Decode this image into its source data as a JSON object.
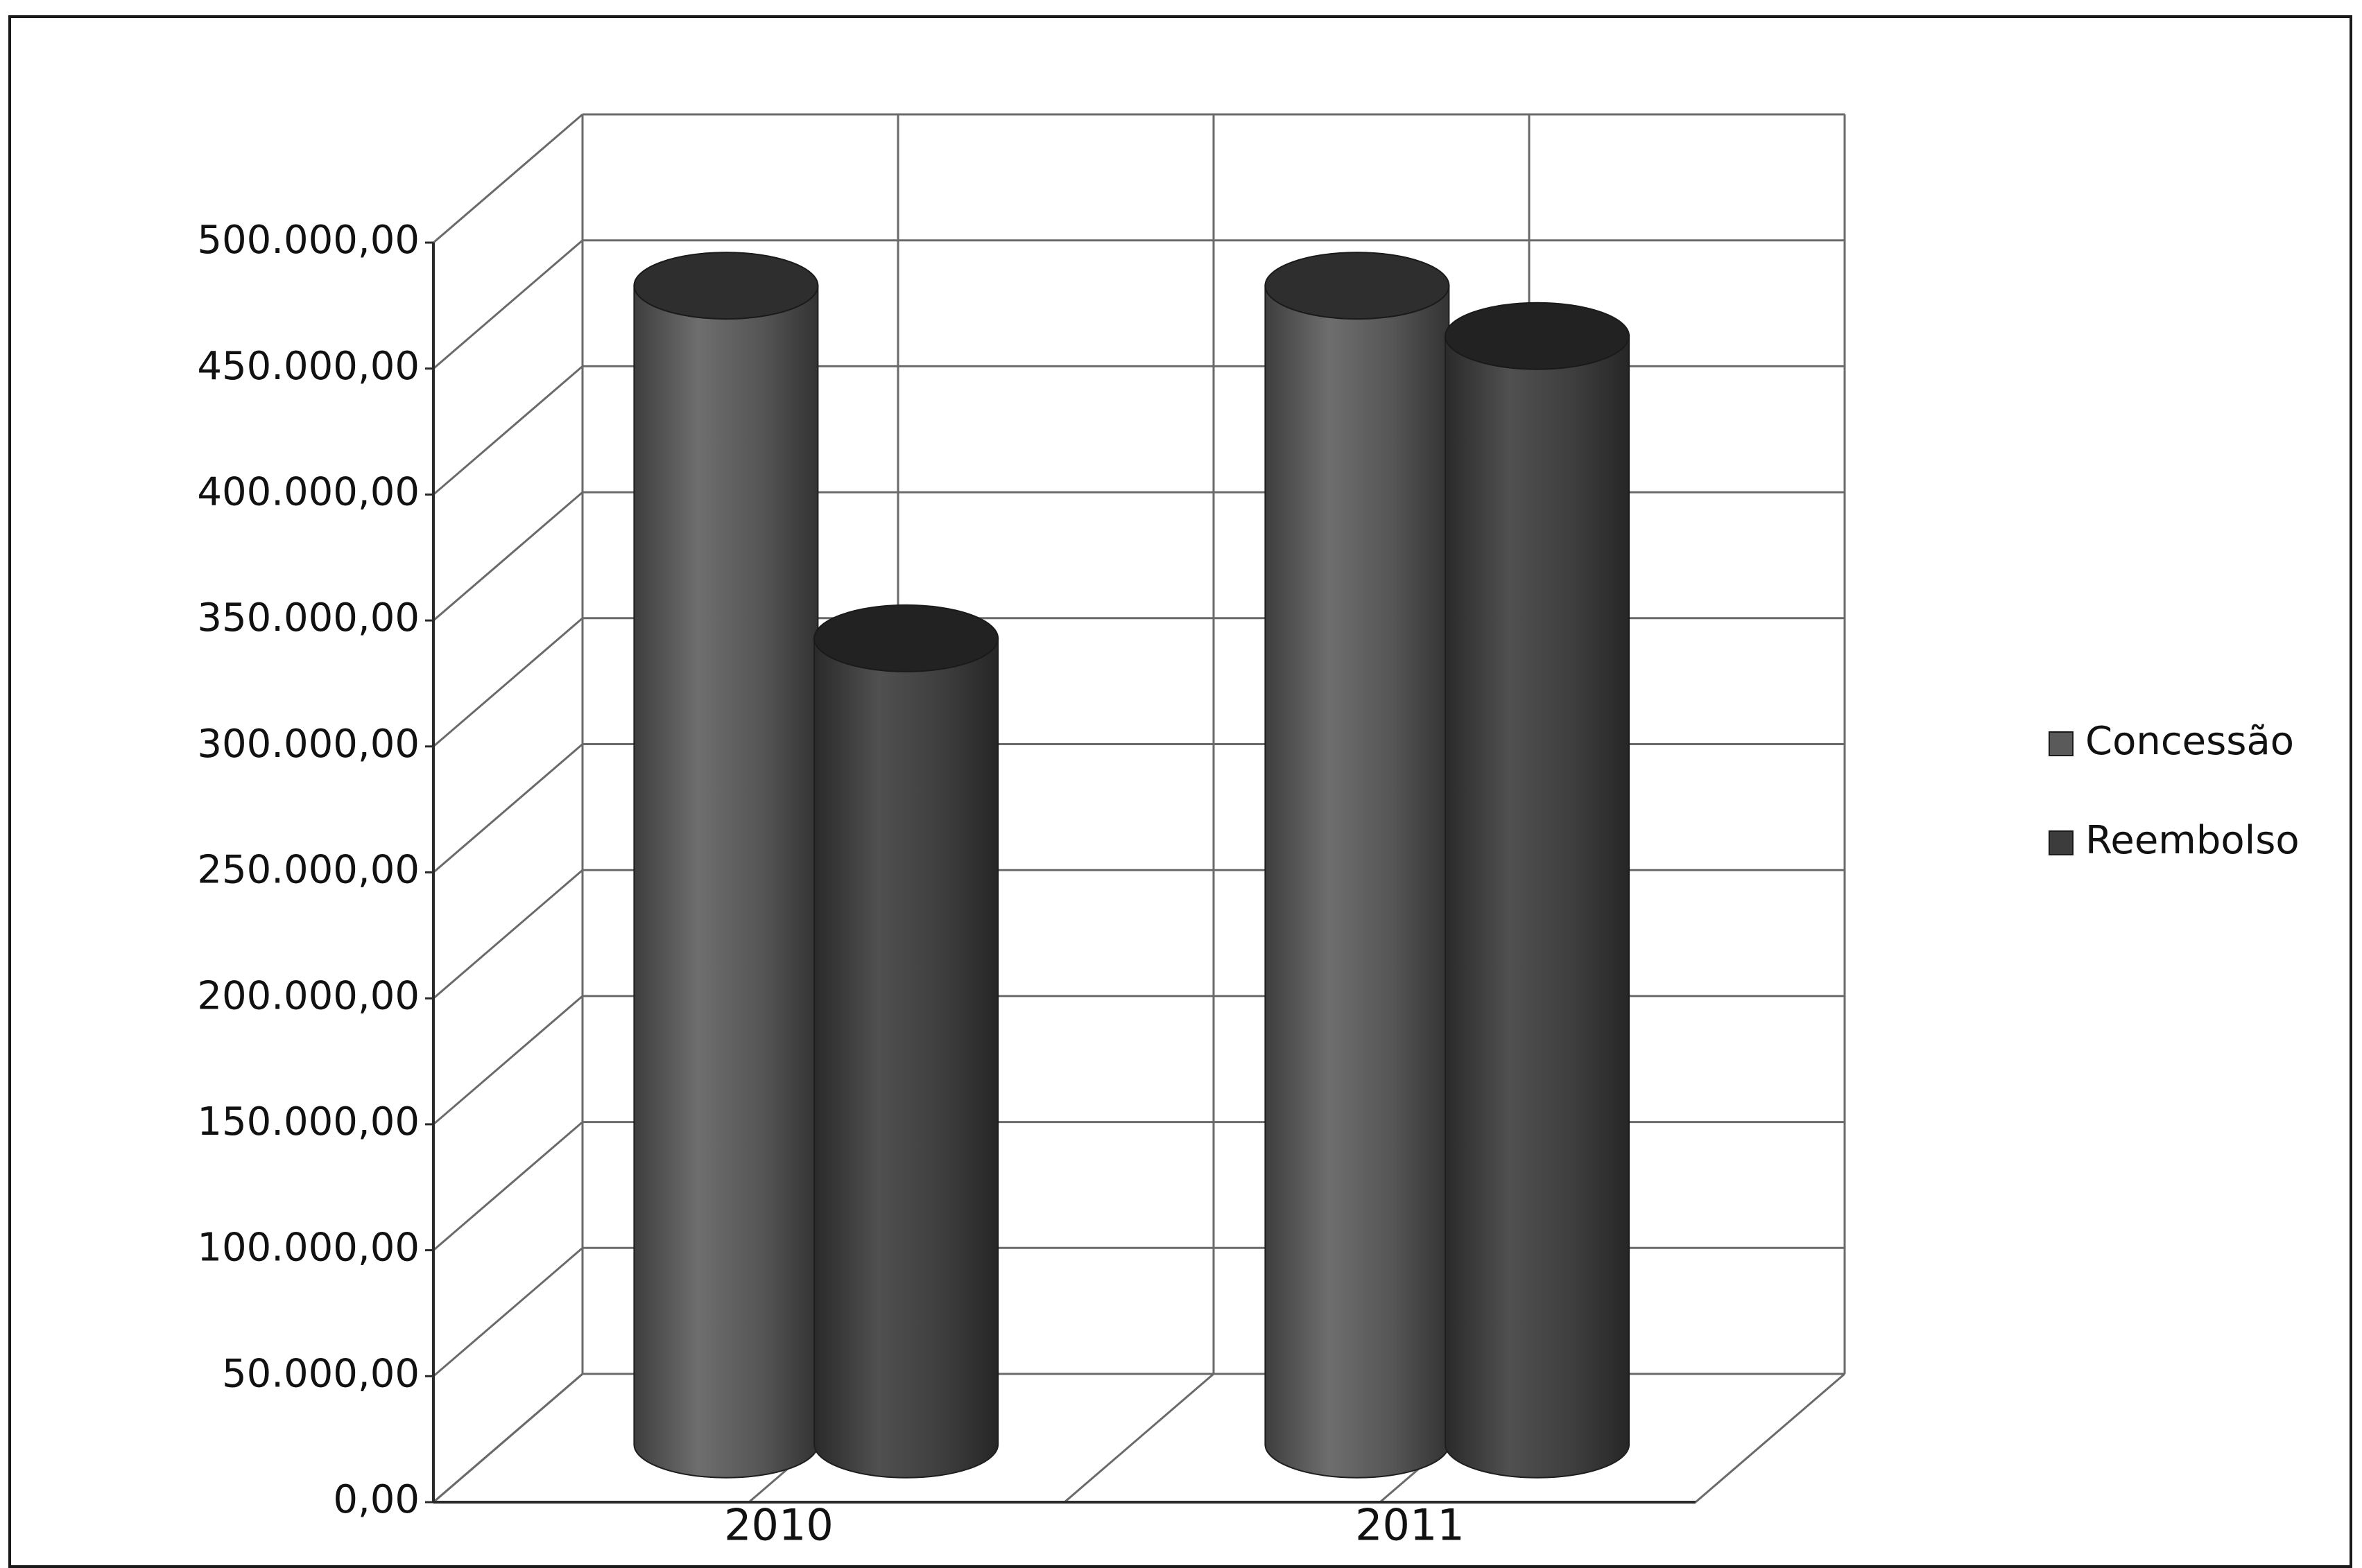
{
  "chart_data": {
    "type": "bar",
    "style": "3d-cylinder",
    "categories": [
      "2010",
      "2011"
    ],
    "series": [
      {
        "name": "Concessão",
        "values": [
          460000,
          460000
        ]
      },
      {
        "name": "Reembolso",
        "values": [
          320000,
          440000
        ]
      }
    ],
    "ylim": [
      0,
      500000
    ],
    "ytick_values": [
      0,
      50000,
      100000,
      150000,
      200000,
      250000,
      300000,
      350000,
      400000,
      450000,
      500000
    ],
    "ytick_labels": [
      "0,00",
      "50.000,00",
      "100.000,00",
      "150.000,00",
      "200.000,00",
      "250.000,00",
      "300.000,00",
      "350.000,00",
      "400.000,00",
      "450.000,00",
      "500.000,00"
    ],
    "grid": true,
    "legend_position": "right",
    "colors": {
      "Concessão": "#5a5a5a",
      "Reembolso": "#3c3c3c",
      "grid": "#6a6a6a",
      "axis": "#2a2a2a"
    }
  }
}
